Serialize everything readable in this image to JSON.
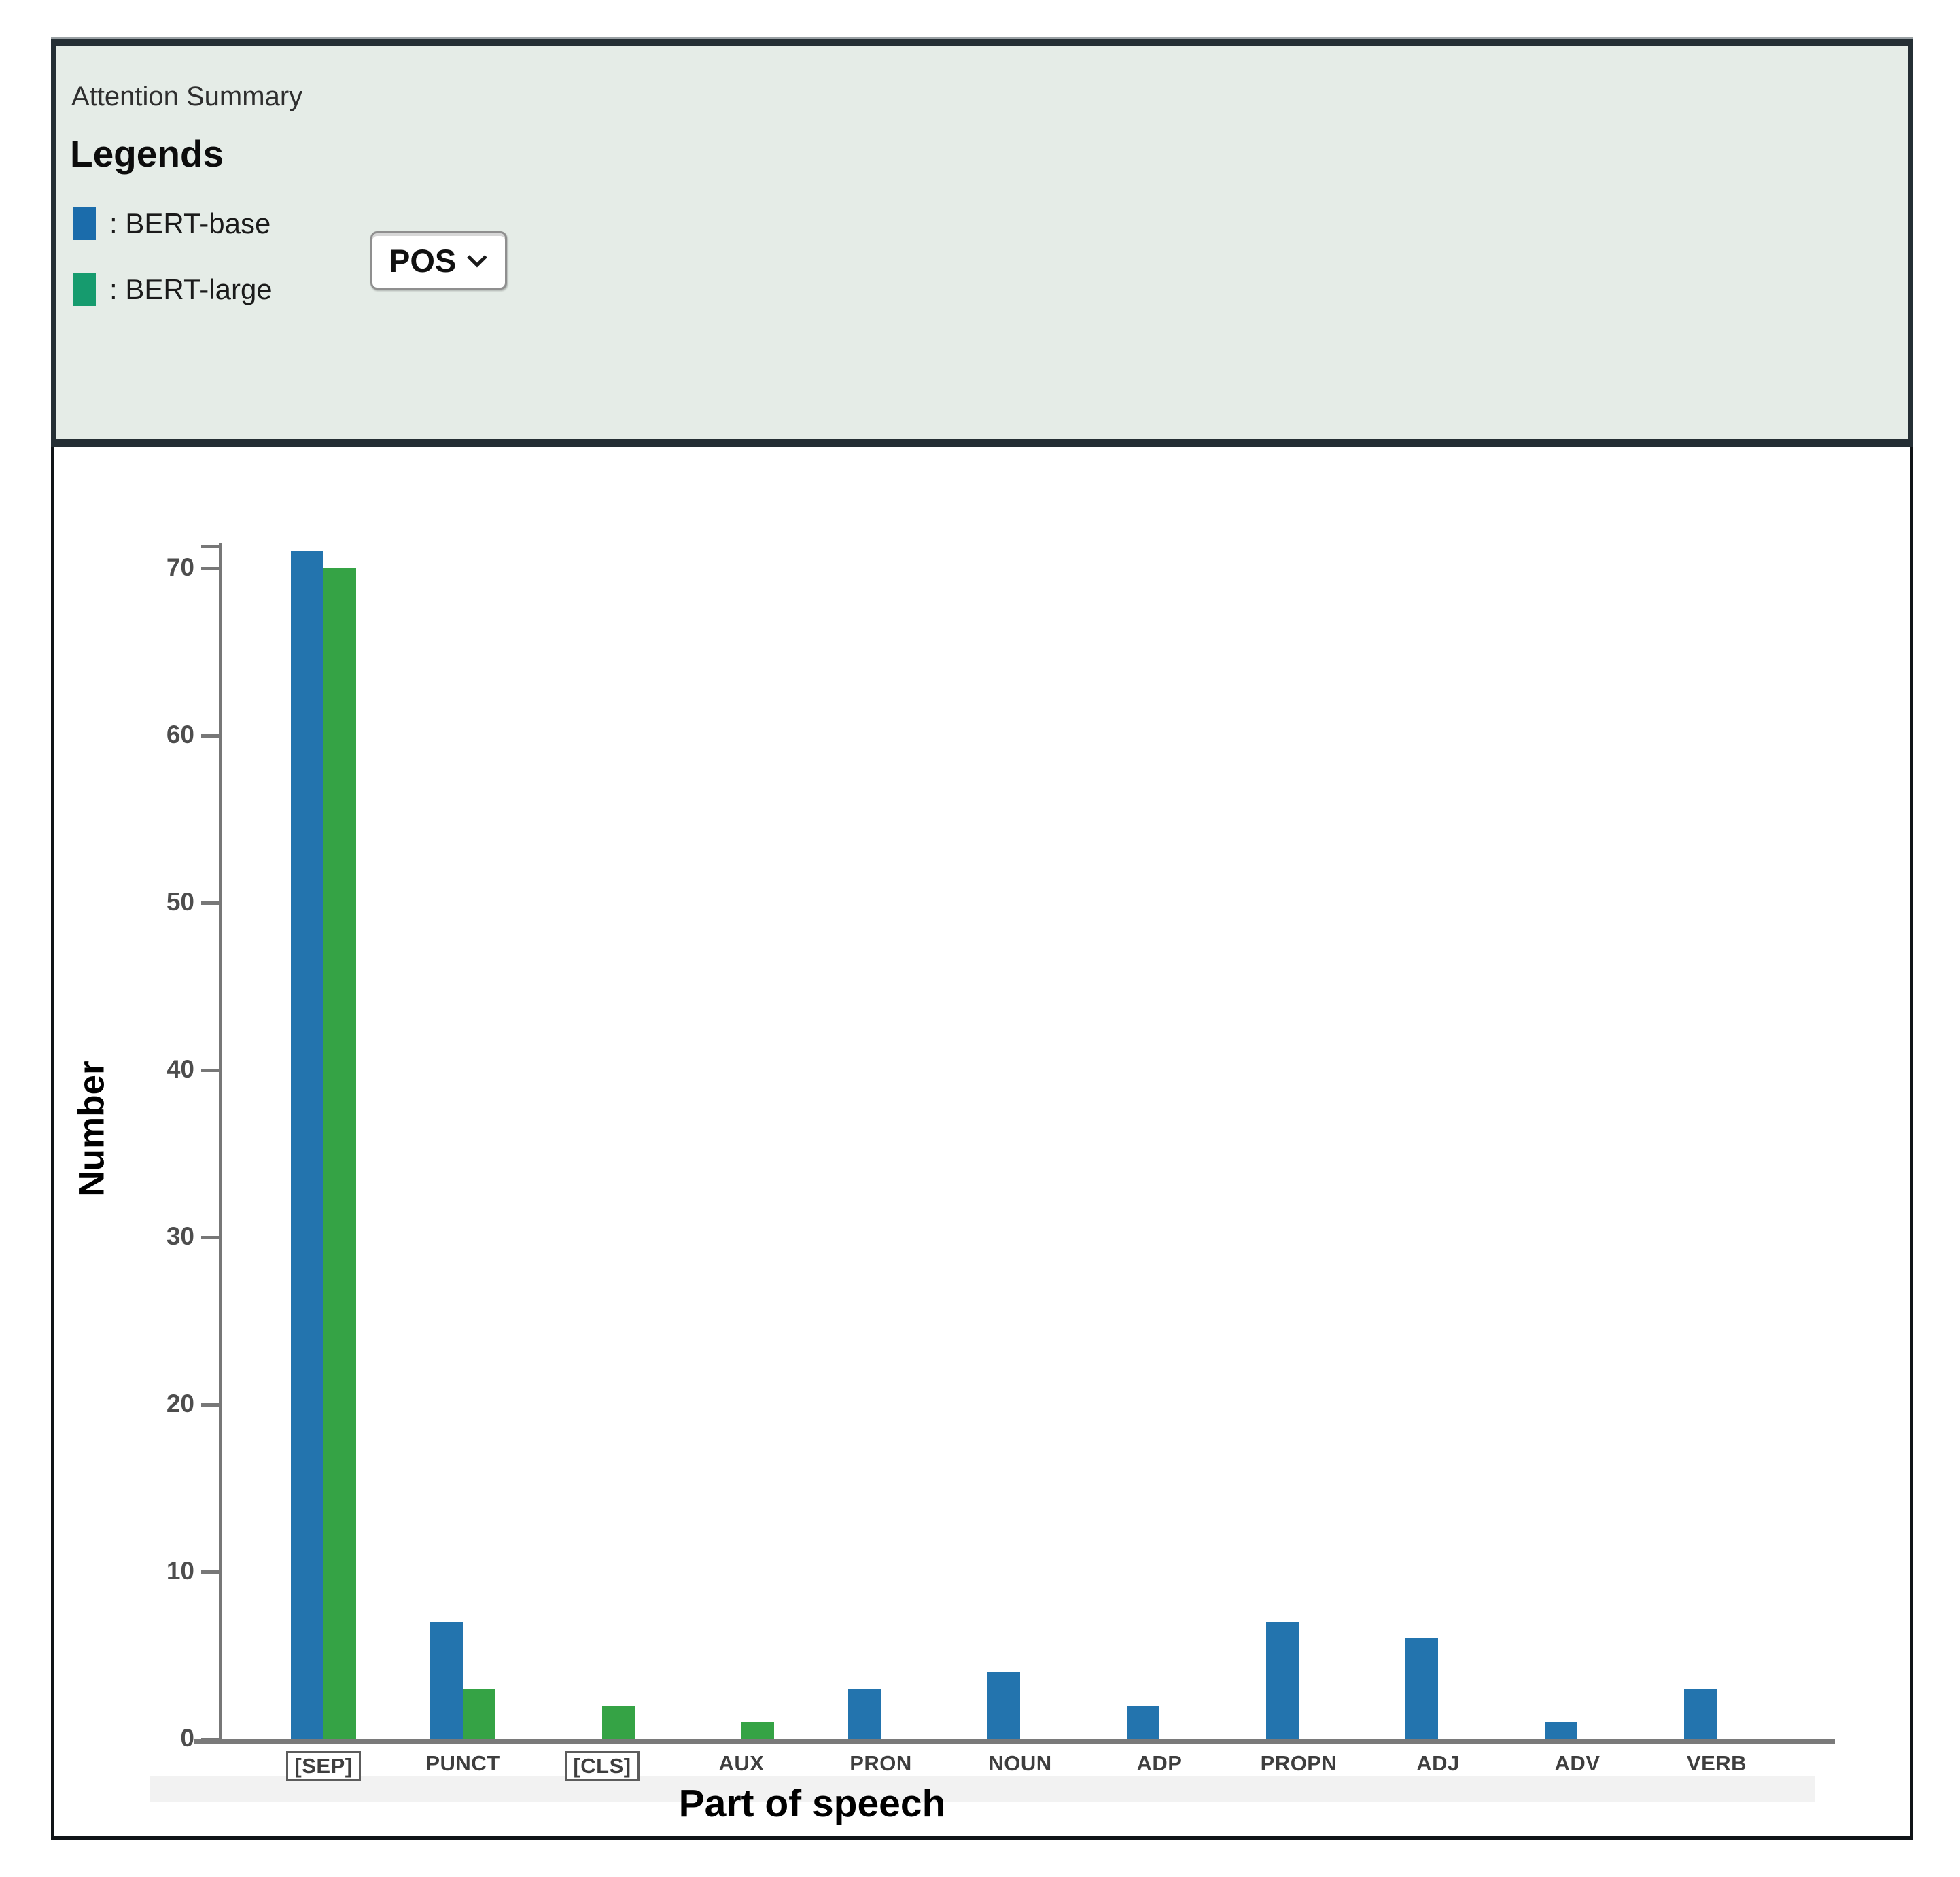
{
  "header": {
    "title": "Attention Summary",
    "legends_title": "Legends",
    "legend_items": [
      {
        "label": ": BERT-base",
        "color": "#1b6cab"
      },
      {
        "label": ": BERT-large",
        "color": "#169b6e"
      }
    ],
    "dropdown": {
      "label": "POS"
    }
  },
  "chart_data": {
    "type": "bar",
    "title": "Attention Summary",
    "categories": [
      "[SEP]",
      "PUNCT",
      "[CLS]",
      "AUX",
      "PRON",
      "NOUN",
      "ADP",
      "PROPN",
      "ADJ",
      "ADV",
      "VERB"
    ],
    "series": [
      {
        "name": "BERT-base",
        "color": "#2374ae",
        "values": [
          71,
          7,
          0,
          0,
          3,
          4,
          2,
          7,
          6,
          1,
          3
        ]
      },
      {
        "name": "BERT-large",
        "color": "#35a345",
        "values": [
          70,
          3,
          2,
          1,
          0,
          0,
          0,
          0,
          0,
          0,
          0
        ]
      }
    ],
    "xlabel": "Part of speech",
    "ylabel": "Number",
    "ylim": [
      0,
      71.5
    ],
    "y_ticks": [
      0,
      10,
      20,
      30,
      40,
      50,
      60,
      70
    ],
    "grid": false,
    "legend_position": "top-left header panel",
    "boxed_categories": [
      "[SEP]",
      "[CLS]"
    ]
  }
}
